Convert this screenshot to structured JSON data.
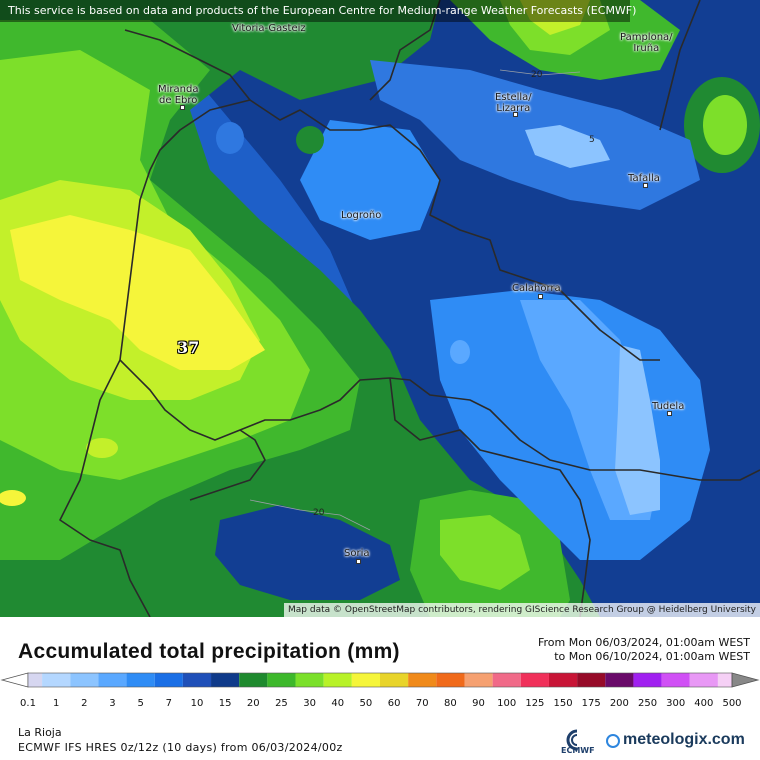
{
  "notice": "This service is based on data and products of the European Centre for Medium-range Weather Forecasts (ECMWF)",
  "attribution": "Map data © OpenStreetMap contributors, rendering GIScience Research Group @ Heidelberg University",
  "cities": {
    "vitoria": "Vitoria-Gasteiz",
    "pamplona": "Pamplona/\nIruña",
    "miranda": "Miranda\nde Ebro",
    "estella": "Estella/\nLizarra",
    "tafalla": "Tafalla",
    "logrono": "Logroño",
    "calahorra": "Calahorra",
    "tudela": "Tudela",
    "soria": "Soria"
  },
  "max_value": "37",
  "contour_labels": {
    "c20_top": "20",
    "c20_bottom": "20",
    "c5": "5"
  },
  "legend": {
    "title": "Accumulated total precipitation (mm)",
    "period_from": "From Mon 06/03/2024, 01:00am WEST",
    "period_to": "to Mon 06/10/2024, 01:00am WEST",
    "ticks": [
      "0.1",
      "1",
      "2",
      "3",
      "5",
      "7",
      "10",
      "15",
      "20",
      "25",
      "30",
      "40",
      "50",
      "60",
      "70",
      "80",
      "90",
      "100",
      "125",
      "150",
      "175",
      "200",
      "250",
      "300",
      "400",
      "500"
    ],
    "colors": [
      "#d6d6f0",
      "#b4d7ff",
      "#8cc4ff",
      "#5aa8ff",
      "#2f8cf5",
      "#1a6fe6",
      "#1e4fb8",
      "#0f3a8a",
      "#1e8a2e",
      "#3db82b",
      "#7be02a",
      "#b8f228",
      "#f5f53a",
      "#e8d42a",
      "#f08a1a",
      "#f06a1a",
      "#f5a070",
      "#f06a88",
      "#f0305a",
      "#c81436",
      "#960a28",
      "#6a0a6a",
      "#a020f0",
      "#d050f5",
      "#e898f5",
      "#f5d0f5",
      "#d8d8d8"
    ]
  },
  "region": "La Rioja",
  "model": "ECMWF IFS HRES 0z/12z (10 days) from 06/03/2024/00z",
  "logos": {
    "ecmwf": "ECMWF",
    "meteologix": "meteologix.com"
  }
}
